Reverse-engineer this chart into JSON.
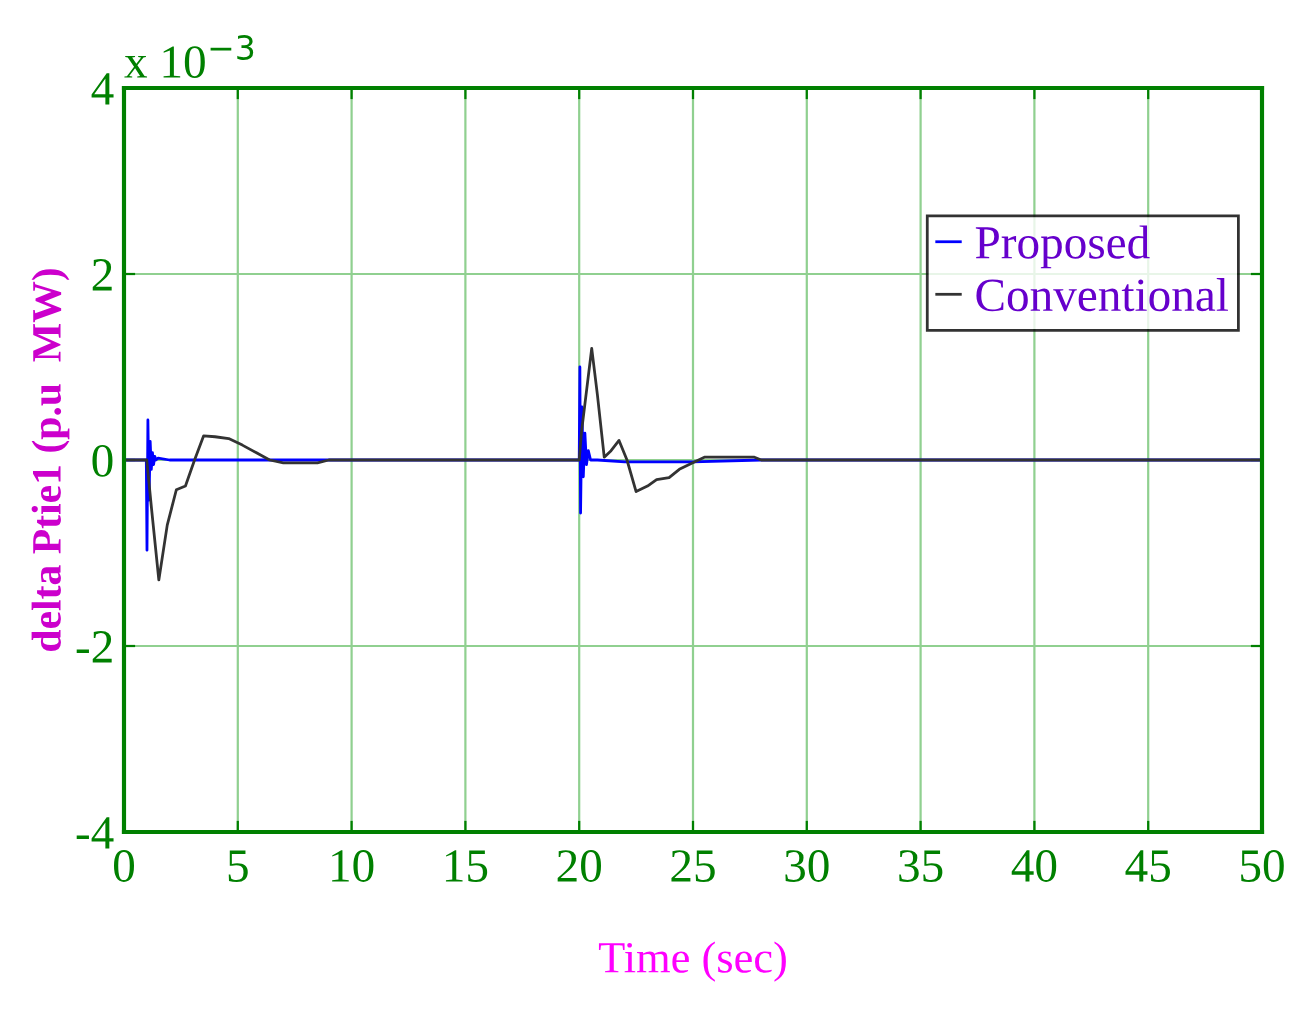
{
  "chart_data": {
    "type": "line",
    "xlabel": "Time (sec)",
    "ylabel": "delta Ptie1 (p.u  MW)",
    "annotations": [
      "x 10$^{−3}$"
    ],
    "xlim": [
      0,
      50
    ],
    "xticks": [
      0,
      5,
      10,
      15,
      20,
      25,
      30,
      35,
      40,
      45,
      50
    ],
    "ylim": [
      -4,
      4
    ],
    "yticks": [
      -4,
      -2,
      0,
      2,
      4
    ],
    "grid": true,
    "legend": "top right",
    "line_style": "solid",
    "marker": "none",
    "series": [
      {
        "name": "Proposed",
        "color": "#0000ff",
        "x": [
          0,
          0.98,
          1.01,
          1.05,
          1.1,
          1.15,
          1.2,
          1.25,
          1.3,
          1.35,
          1.4,
          1.5,
          2,
          5,
          10,
          20,
          20.03,
          20.06,
          20.12,
          20.18,
          20.25,
          20.32,
          20.4,
          20.5,
          20.8,
          22,
          25,
          28,
          50
        ],
        "values": [
          0,
          0,
          -0.97,
          0.43,
          -0.43,
          0.2,
          -0.1,
          0.08,
          -0.05,
          0.04,
          0,
          0.02,
          0,
          0,
          0,
          0,
          1.0,
          -0.57,
          0.57,
          -0.18,
          0.29,
          -0.05,
          0.1,
          0,
          0,
          -0.02,
          -0.02,
          0,
          0
        ]
      },
      {
        "name": "Conventional",
        "color": "#333333",
        "x": [
          0,
          1.0,
          1.2,
          1.53,
          1.9,
          2.3,
          2.7,
          3.1,
          3.5,
          4.0,
          4.6,
          5.2,
          5.8,
          6.4,
          7,
          8.5,
          9,
          20,
          20.1,
          20.55,
          20.8,
          21.1,
          21.4,
          21.75,
          22.1,
          22.5,
          23.0,
          23.4,
          23.95,
          24.4,
          24.9,
          25.5,
          27.7,
          28,
          50
        ],
        "values": [
          0,
          0,
          -0.5,
          -1.29,
          -0.7,
          -0.32,
          -0.28,
          0,
          0.26,
          0.25,
          0.23,
          0.16,
          0.08,
          0,
          -0.03,
          -0.03,
          0,
          0,
          0.3,
          1.2,
          0.7,
          0.03,
          0.1,
          0.21,
          0,
          -0.34,
          -0.28,
          -0.21,
          -0.19,
          -0.1,
          -0.04,
          0.03,
          0.03,
          0,
          0
        ]
      }
    ]
  }
}
